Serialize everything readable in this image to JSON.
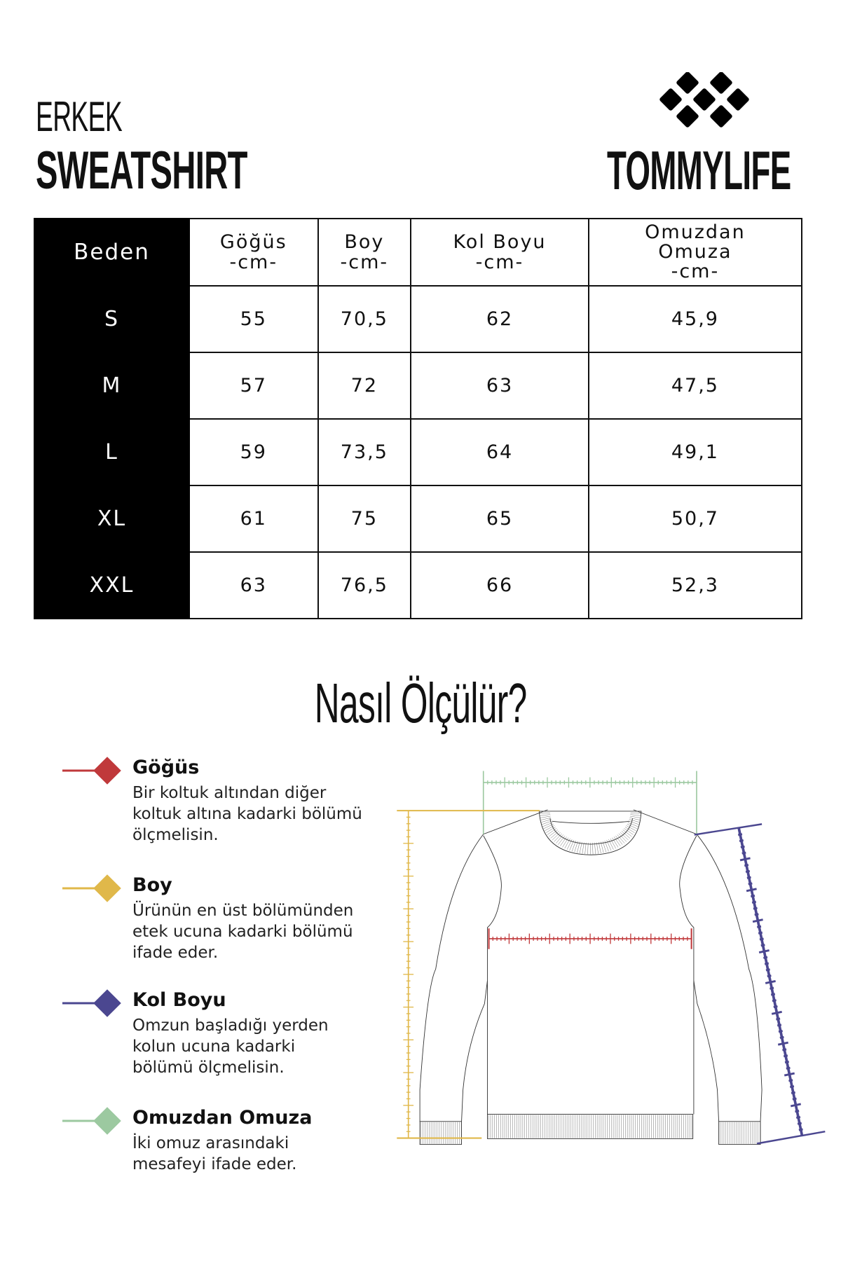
{
  "header": {
    "line1": "ERKEK",
    "line2": "SWEATSHIRT"
  },
  "brand": {
    "name": "TOMMYLIFE",
    "logo_icon": "diamond-grid-logo"
  },
  "table": {
    "columns": [
      {
        "title": "Beden",
        "unit": ""
      },
      {
        "title": "Göğüs",
        "unit": "-cm-"
      },
      {
        "title": "Boy",
        "unit": "-cm-"
      },
      {
        "title": "Kol Boyu",
        "unit": "-cm-"
      },
      {
        "title": "Omuzdan Omuza",
        "unit": "-cm-"
      }
    ],
    "rows": [
      [
        "S",
        "55",
        "70,5",
        "62",
        "45,9"
      ],
      [
        "M",
        "57",
        "72",
        "63",
        "47,5"
      ],
      [
        "L",
        "59",
        "73,5",
        "64",
        "49,1"
      ],
      [
        "XL",
        "61",
        "75",
        "65",
        "50,7"
      ],
      [
        "XXL",
        "63",
        "76,5",
        "66",
        "52,3"
      ]
    ]
  },
  "how_to": {
    "title": "Nasıl Ölçülür?",
    "items": [
      {
        "title": "Göğüs",
        "color": "#c0393b",
        "lines": [
          "Bir koltuk altından diğer",
          "koltuk altına kadarki bölümü",
          "ölçmelisin."
        ]
      },
      {
        "title": "Boy",
        "color": "#e0b84a",
        "lines": [
          "Ürünün en üst bölümünden",
          "etek ucuna kadarki bölümü",
          "ifade eder."
        ]
      },
      {
        "title": "Kol Boyu",
        "color": "#4b4790",
        "lines": [
          "Omzun başladığı yerden",
          "kolun ucuna kadarki",
          "bölümü ölçmelisin."
        ]
      },
      {
        "title": "Omuzdan Omuza",
        "color": "#9cc9a0",
        "lines": [
          "İki omuz arasındaki",
          "mesafeyi ifade eder."
        ]
      }
    ]
  }
}
